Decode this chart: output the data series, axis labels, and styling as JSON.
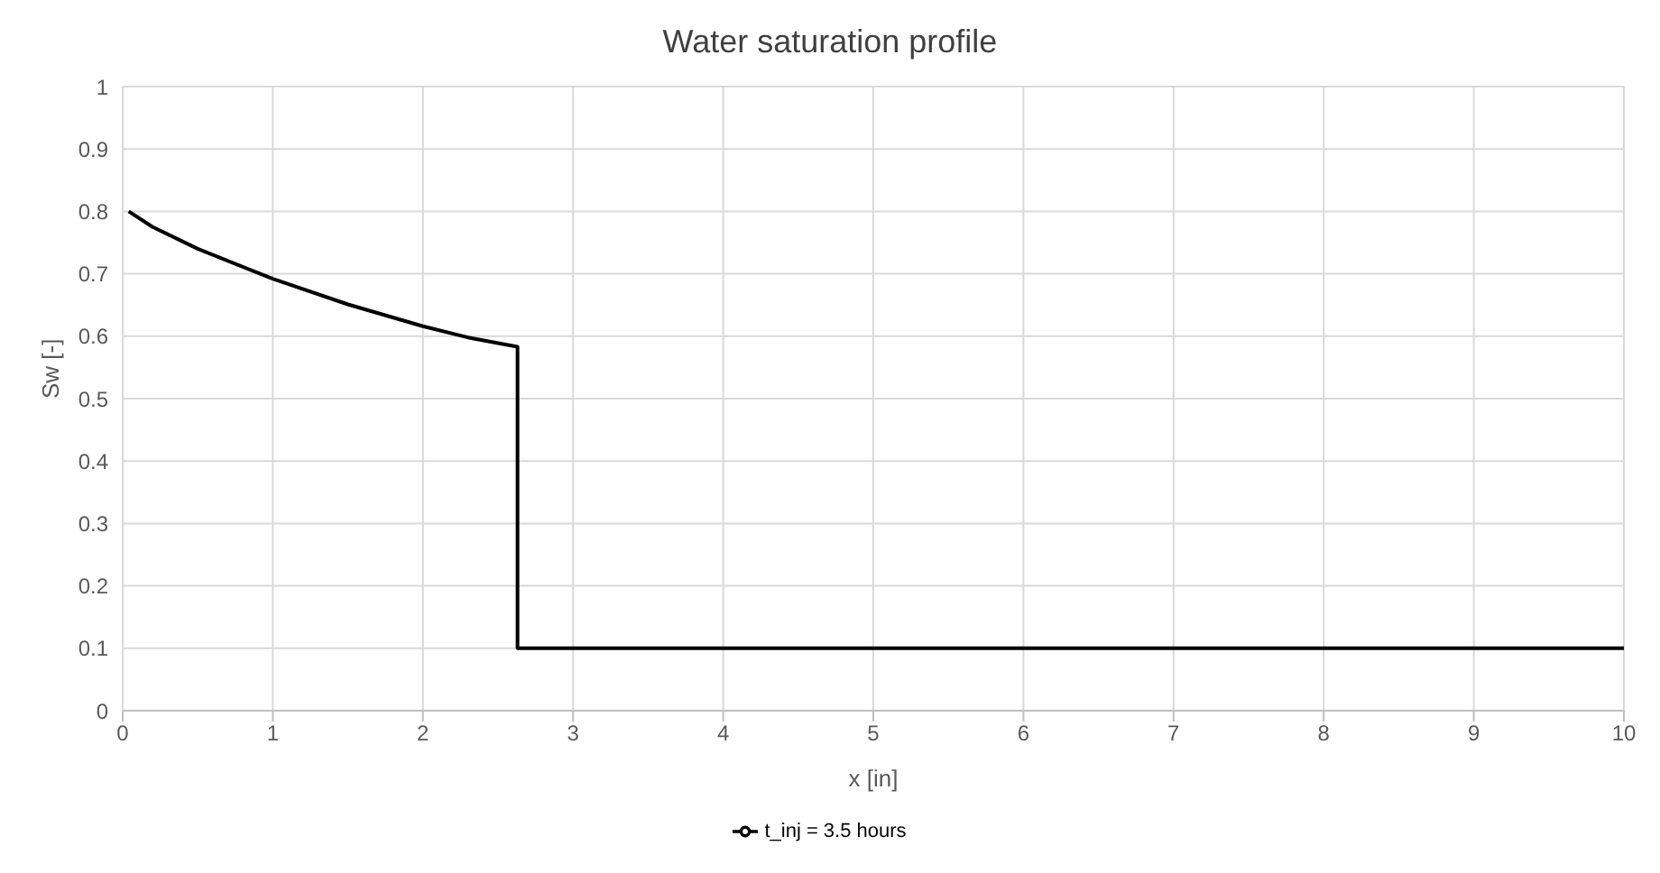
{
  "chart_data": {
    "type": "line",
    "title": "Water saturation profile",
    "xlabel": "x [in]",
    "ylabel": "Sw [-]",
    "series": [
      {
        "name": "t_inj = 3.5 hours",
        "color": "#000000",
        "x": [
          0.04,
          0.2,
          0.5,
          1,
          1.5,
          2,
          2.3,
          2.63,
          2.63,
          10
        ],
        "values": [
          0.8,
          0.775,
          0.74,
          0.692,
          0.651,
          0.616,
          0.598,
          0.583,
          0.1,
          0.1
        ]
      }
    ],
    "xlim": [
      0,
      10
    ],
    "xticks": [
      0,
      1,
      2,
      3,
      4,
      5,
      6,
      7,
      8,
      9,
      10
    ],
    "ylim": [
      0,
      1
    ],
    "yticks": [
      0,
      0.1,
      0.2,
      0.3,
      0.4,
      0.5,
      0.6,
      0.7,
      0.8,
      0.9,
      1
    ],
    "grid": true,
    "legend": "bottom",
    "marker": "none",
    "line_style": "solid"
  }
}
